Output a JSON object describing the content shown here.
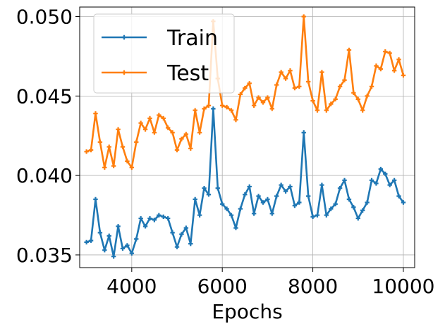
{
  "chart_data": {
    "type": "line",
    "title": "",
    "xlabel": "Epochs",
    "ylabel": "",
    "xlim": [
      2850,
      10250
    ],
    "ylim": [
      0.0342,
      0.0506
    ],
    "xticks": [
      4000,
      6000,
      8000,
      10000
    ],
    "xtick_labels": [
      "4000",
      "6000",
      "8000",
      "10000"
    ],
    "yticks": [
      0.035,
      0.04,
      0.045,
      0.05
    ],
    "ytick_labels": [
      "0.035",
      "0.040",
      "0.045",
      "0.050"
    ],
    "grid": true,
    "legend_position": "upper-left",
    "x": [
      3000,
      3100,
      3200,
      3300,
      3400,
      3500,
      3600,
      3700,
      3800,
      3900,
      4000,
      4100,
      4200,
      4300,
      4400,
      4500,
      4600,
      4700,
      4800,
      4900,
      5000,
      5100,
      5200,
      5300,
      5400,
      5500,
      5600,
      5700,
      5800,
      5900,
      6000,
      6100,
      6200,
      6300,
      6400,
      6500,
      6600,
      6700,
      6800,
      6900,
      7000,
      7100,
      7200,
      7300,
      7400,
      7500,
      7600,
      7700,
      7800,
      7900,
      8000,
      8100,
      8200,
      8300,
      8400,
      8500,
      8600,
      8700,
      8800,
      8900,
      9000,
      9100,
      9200,
      9300,
      9400,
      9500,
      9600,
      9700,
      9800,
      9900,
      10000
    ],
    "series": [
      {
        "name": "Train",
        "color": "#1f77b4",
        "values": [
          0.0358,
          0.0359,
          0.0385,
          0.0364,
          0.0353,
          0.0362,
          0.0349,
          0.0368,
          0.0354,
          0.0356,
          0.0351,
          0.036,
          0.0373,
          0.0368,
          0.0373,
          0.0372,
          0.0375,
          0.0374,
          0.0373,
          0.0364,
          0.0355,
          0.0363,
          0.0367,
          0.0357,
          0.0385,
          0.0375,
          0.0392,
          0.0388,
          0.0442,
          0.0392,
          0.0382,
          0.0379,
          0.0375,
          0.0367,
          0.0379,
          0.0388,
          0.0393,
          0.0376,
          0.0387,
          0.0383,
          0.0385,
          0.0376,
          0.0387,
          0.0394,
          0.039,
          0.0393,
          0.0381,
          0.0383,
          0.0427,
          0.0387,
          0.0374,
          0.0375,
          0.0394,
          0.0375,
          0.0379,
          0.0382,
          0.0392,
          0.0397,
          0.0385,
          0.038,
          0.0373,
          0.0378,
          0.0383,
          0.0397,
          0.0395,
          0.0404,
          0.0401,
          0.0394,
          0.0397,
          0.0387,
          0.0383
        ]
      },
      {
        "name": "Test",
        "color": "#ff7f0e",
        "values": [
          0.0415,
          0.0416,
          0.0439,
          0.0421,
          0.0405,
          0.0418,
          0.0406,
          0.0429,
          0.0418,
          0.0409,
          0.0405,
          0.0421,
          0.0433,
          0.0429,
          0.0436,
          0.0427,
          0.0438,
          0.0436,
          0.043,
          0.0427,
          0.0416,
          0.0423,
          0.0426,
          0.0417,
          0.0441,
          0.0427,
          0.0442,
          0.0444,
          0.0497,
          0.0461,
          0.0444,
          0.0443,
          0.0441,
          0.0435,
          0.0451,
          0.0455,
          0.0458,
          0.0444,
          0.0449,
          0.0446,
          0.0449,
          0.0442,
          0.0457,
          0.0465,
          0.0461,
          0.0466,
          0.0455,
          0.0456,
          0.05,
          0.0459,
          0.0447,
          0.0441,
          0.0465,
          0.0441,
          0.0445,
          0.0448,
          0.0456,
          0.046,
          0.0479,
          0.0452,
          0.0448,
          0.0441,
          0.045,
          0.0456,
          0.0469,
          0.0467,
          0.0478,
          0.0477,
          0.0466,
          0.0473,
          0.0463
        ]
      }
    ]
  }
}
